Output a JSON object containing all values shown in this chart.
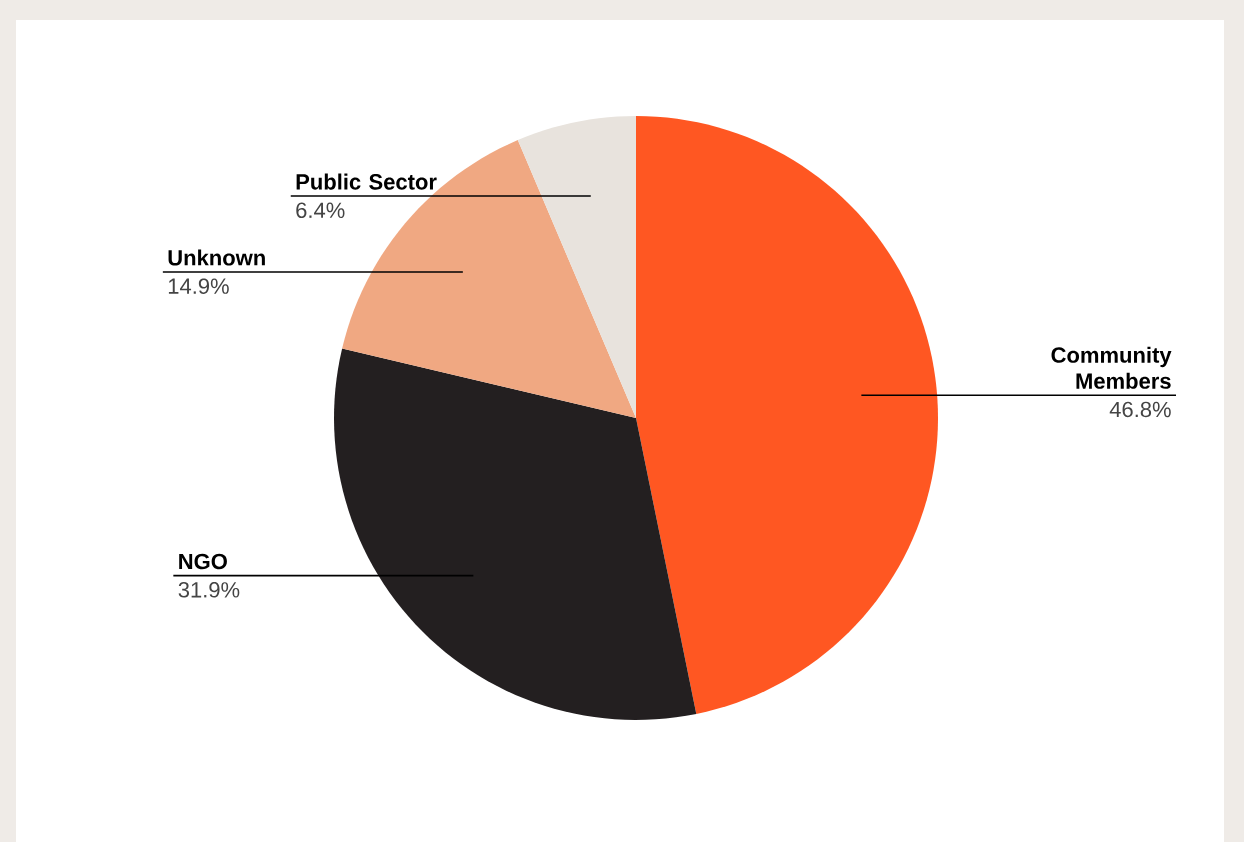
{
  "chart_data": {
    "type": "pie",
    "categories": [
      "Community Members",
      "NGO",
      "Unknown",
      "Public Sector"
    ],
    "values": [
      46.8,
      31.9,
      14.9,
      6.4
    ],
    "colors": [
      "#ff5722",
      "#231f20",
      "#f0a882",
      "#e8e3dd"
    ],
    "value_labels": [
      "46.8%",
      "31.9%",
      "14.9%",
      "6.4%"
    ]
  }
}
